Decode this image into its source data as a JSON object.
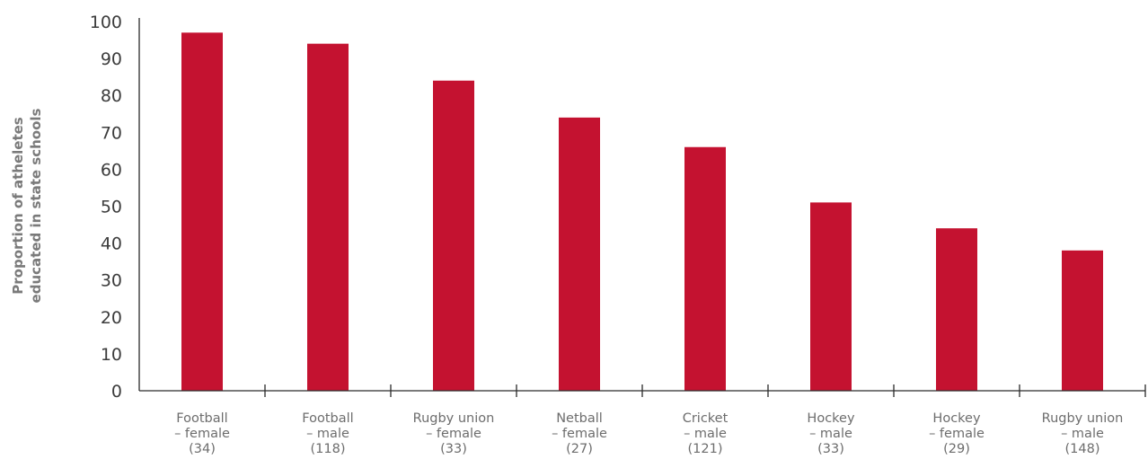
{
  "chart_data": {
    "type": "bar",
    "categories": [
      [
        "Football",
        "– female",
        "(34)"
      ],
      [
        "Football",
        "– male",
        "(118)"
      ],
      [
        "Rugby union",
        "– female",
        "(33)"
      ],
      [
        "Netball",
        "– female",
        "(27)"
      ],
      [
        "Cricket",
        "– male",
        "(121)"
      ],
      [
        "Hockey",
        "– male",
        "(33)"
      ],
      [
        "Hockey",
        "– female",
        "(29)"
      ],
      [
        "Rugby union",
        "– male",
        "(148)"
      ]
    ],
    "values": [
      97,
      94,
      84,
      74,
      66,
      51,
      44,
      38
    ],
    "title": "",
    "xlabel": "",
    "ylabel": [
      "Proportion of atheletes",
      "educated in state schools"
    ],
    "ylim": [
      0,
      100
    ],
    "yticks": [
      0,
      10,
      20,
      30,
      40,
      50,
      60,
      70,
      80,
      90,
      100
    ],
    "grid": false,
    "bar_color": "#c41230"
  }
}
